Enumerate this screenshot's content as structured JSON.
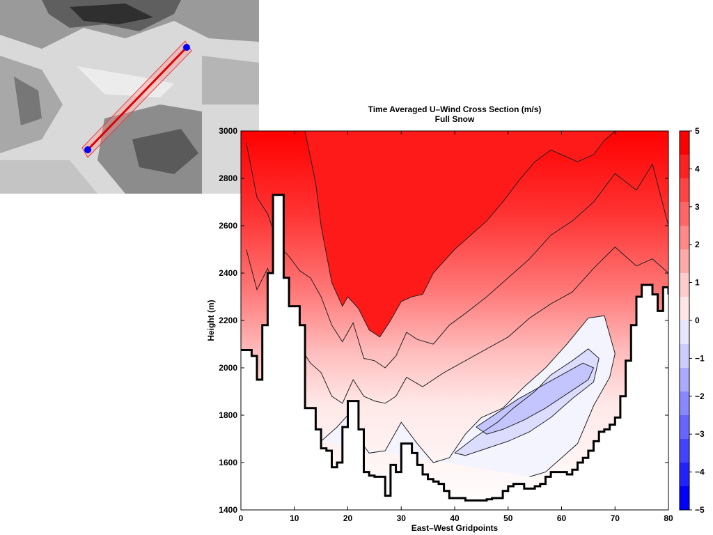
{
  "chart_data": {
    "type": "heatmap",
    "title": "Time Averaged U–Wind Cross Section (m/s)",
    "subtitle": "Full Snow",
    "xlabel": "East–West Gridpoints",
    "ylabel": "Height (m)",
    "xlim": [
      0,
      80
    ],
    "ylim": [
      1400,
      3000
    ],
    "x_ticks": [
      0,
      10,
      20,
      30,
      40,
      50,
      60,
      70,
      80
    ],
    "y_ticks": [
      1400,
      1600,
      1800,
      2000,
      2200,
      2400,
      2600,
      2800,
      3000
    ],
    "colorbar": {
      "range": [
        -5,
        5
      ],
      "ticks": [
        "5",
        "4",
        "3",
        "2",
        "1",
        "0",
        "−1",
        "−2",
        "−3",
        "−4",
        "−5"
      ],
      "colors": [
        "#ff0000",
        "#ff2222",
        "#ff4444",
        "#ff6666",
        "#ff8888",
        "#ffaaaa",
        "#ffcccc",
        "#ffe6e6",
        "#e6e6ff",
        "#ccccff",
        "#aaaaff",
        "#8888ff",
        "#6666ff",
        "#4444ff",
        "#2222ff",
        "#0000ff"
      ]
    },
    "terrain_height": [
      [
        0,
        2075
      ],
      [
        1,
        2075
      ],
      [
        2,
        2050
      ],
      [
        3,
        1950
      ],
      [
        4,
        2180
      ],
      [
        5,
        2400
      ],
      [
        6,
        2730
      ],
      [
        7,
        2730
      ],
      [
        8,
        2380
      ],
      [
        9,
        2260
      ],
      [
        10,
        2260
      ],
      [
        11,
        2180
      ],
      [
        12,
        1830
      ],
      [
        13,
        1830
      ],
      [
        14,
        1740
      ],
      [
        15,
        1660
      ],
      [
        16,
        1650
      ],
      [
        17,
        1580
      ],
      [
        18,
        1600
      ],
      [
        19,
        1750
      ],
      [
        20,
        1860
      ],
      [
        21,
        1860
      ],
      [
        22,
        1740
      ],
      [
        23,
        1560
      ],
      [
        24,
        1545
      ],
      [
        25,
        1540
      ],
      [
        26,
        1540
      ],
      [
        27,
        1460
      ],
      [
        28,
        1590
      ],
      [
        29,
        1560
      ],
      [
        30,
        1680
      ],
      [
        31,
        1680
      ],
      [
        32,
        1640
      ],
      [
        33,
        1590
      ],
      [
        34,
        1550
      ],
      [
        35,
        1530
      ],
      [
        36,
        1520
      ],
      [
        37,
        1510
      ],
      [
        38,
        1480
      ],
      [
        39,
        1450
      ],
      [
        40,
        1450
      ],
      [
        41,
        1450
      ],
      [
        42,
        1440
      ],
      [
        43,
        1440
      ],
      [
        44,
        1440
      ],
      [
        45,
        1440
      ],
      [
        46,
        1445
      ],
      [
        47,
        1450
      ],
      [
        48,
        1450
      ],
      [
        49,
        1480
      ],
      [
        50,
        1500
      ],
      [
        51,
        1510
      ],
      [
        52,
        1510
      ],
      [
        53,
        1490
      ],
      [
        54,
        1490
      ],
      [
        55,
        1500
      ],
      [
        56,
        1510
      ],
      [
        57,
        1540
      ],
      [
        58,
        1560
      ],
      [
        59,
        1560
      ],
      [
        60,
        1560
      ],
      [
        61,
        1550
      ],
      [
        62,
        1570
      ],
      [
        63,
        1600
      ],
      [
        64,
        1620
      ],
      [
        65,
        1650
      ],
      [
        66,
        1690
      ],
      [
        67,
        1730
      ],
      [
        68,
        1740
      ],
      [
        69,
        1760
      ],
      [
        70,
        1790
      ],
      [
        71,
        1880
      ],
      [
        72,
        2030
      ],
      [
        73,
        2180
      ],
      [
        74,
        2300
      ],
      [
        75,
        2350
      ],
      [
        76,
        2350
      ],
      [
        77,
        2310
      ],
      [
        78,
        2240
      ],
      [
        79,
        2340
      ],
      [
        80,
        2310
      ]
    ],
    "wind_contours": [
      {
        "level": 4,
        "points": [
          [
            12,
            3000
          ],
          [
            14,
            2780
          ],
          [
            15,
            2600
          ],
          [
            17,
            2360
          ],
          [
            19,
            2260
          ],
          [
            20,
            2300
          ],
          [
            22,
            2250
          ],
          [
            24,
            2160
          ],
          [
            26,
            2130
          ],
          [
            28,
            2200
          ],
          [
            30,
            2280
          ],
          [
            32,
            2300
          ],
          [
            34,
            2310
          ],
          [
            36,
            2400
          ],
          [
            38,
            2450
          ],
          [
            40,
            2500
          ],
          [
            43,
            2560
          ],
          [
            46,
            2620
          ],
          [
            49,
            2700
          ],
          [
            52,
            2790
          ],
          [
            55,
            2870
          ],
          [
            58,
            2920
          ],
          [
            60,
            2900
          ],
          [
            63,
            2870
          ],
          [
            66,
            2900
          ],
          [
            68,
            2960
          ],
          [
            70,
            3000
          ]
        ]
      },
      {
        "level": 3,
        "points": [
          [
            1,
            2950
          ],
          [
            3,
            2720
          ],
          [
            5,
            2650
          ],
          [
            7,
            2520
          ],
          [
            9,
            2470
          ],
          [
            11,
            2410
          ],
          [
            13,
            2380
          ],
          [
            15,
            2300
          ],
          [
            17,
            2180
          ],
          [
            19,
            2110
          ],
          [
            21,
            2190
          ],
          [
            23,
            2040
          ],
          [
            25,
            2030
          ],
          [
            27,
            2000
          ],
          [
            29,
            2050
          ],
          [
            31,
            2150
          ],
          [
            33,
            2120
          ],
          [
            36,
            2100
          ],
          [
            39,
            2180
          ],
          [
            42,
            2230
          ],
          [
            46,
            2300
          ],
          [
            50,
            2380
          ],
          [
            54,
            2460
          ],
          [
            58,
            2560
          ],
          [
            62,
            2620
          ],
          [
            66,
            2700
          ],
          [
            70,
            2820
          ],
          [
            74,
            2750
          ],
          [
            77,
            2860
          ],
          [
            80,
            2600
          ]
        ]
      },
      {
        "level": 2,
        "points": [
          [
            1,
            2500
          ],
          [
            3,
            2330
          ],
          [
            5,
            2420
          ],
          [
            7,
            2300
          ],
          [
            9,
            2250
          ],
          [
            11,
            2090
          ],
          [
            13,
            2020
          ],
          [
            15,
            1980
          ],
          [
            17,
            1880
          ],
          [
            19,
            1850
          ],
          [
            21,
            1950
          ],
          [
            23,
            1880
          ],
          [
            25,
            1860
          ],
          [
            27,
            1850
          ],
          [
            29,
            1880
          ],
          [
            31,
            1960
          ],
          [
            34,
            1920
          ],
          [
            38,
            1980
          ],
          [
            42,
            2030
          ],
          [
            46,
            2080
          ],
          [
            50,
            2130
          ],
          [
            54,
            2210
          ],
          [
            58,
            2270
          ],
          [
            62,
            2320
          ],
          [
            66,
            2420
          ],
          [
            70,
            2510
          ],
          [
            74,
            2430
          ],
          [
            77,
            2460
          ],
          [
            80,
            2400
          ]
        ]
      },
      {
        "level": 0,
        "points": [
          [
            15,
            1690
          ],
          [
            18,
            1750
          ],
          [
            20,
            1800
          ],
          [
            22,
            1700
          ],
          [
            24,
            1640
          ],
          [
            27,
            1650
          ],
          [
            30,
            1770
          ],
          [
            33,
            1680
          ],
          [
            36,
            1600
          ],
          [
            39,
            1620
          ],
          [
            42,
            1720
          ],
          [
            45,
            1790
          ],
          [
            49,
            1830
          ],
          [
            53,
            1920
          ],
          [
            57,
            2000
          ],
          [
            61,
            2100
          ],
          [
            65,
            2210
          ],
          [
            68,
            2220
          ],
          [
            70,
            2060
          ],
          [
            69,
            1960
          ],
          [
            66,
            1840
          ],
          [
            63,
            1680
          ],
          [
            60,
            1620
          ],
          [
            57,
            1560
          ],
          [
            54,
            1540
          ]
        ]
      },
      {
        "level": -1,
        "points": [
          [
            40,
            1640
          ],
          [
            44,
            1710
          ],
          [
            48,
            1770
          ],
          [
            51,
            1830
          ],
          [
            55,
            1900
          ],
          [
            58,
            1970
          ],
          [
            62,
            2030
          ],
          [
            65,
            2080
          ],
          [
            67,
            2040
          ],
          [
            66,
            1940
          ],
          [
            62,
            1870
          ],
          [
            58,
            1790
          ],
          [
            54,
            1730
          ],
          [
            50,
            1690
          ],
          [
            46,
            1660
          ],
          [
            42,
            1630
          ],
          [
            40,
            1640
          ]
        ]
      },
      {
        "level": -2,
        "points": [
          [
            44,
            1750
          ],
          [
            48,
            1810
          ],
          [
            52,
            1870
          ],
          [
            56,
            1920
          ],
          [
            60,
            1970
          ],
          [
            64,
            2020
          ],
          [
            66,
            2000
          ],
          [
            65,
            1950
          ],
          [
            61,
            1890
          ],
          [
            57,
            1830
          ],
          [
            53,
            1780
          ],
          [
            49,
            1740
          ],
          [
            46,
            1720
          ],
          [
            44,
            1750
          ]
        ]
      }
    ]
  }
}
